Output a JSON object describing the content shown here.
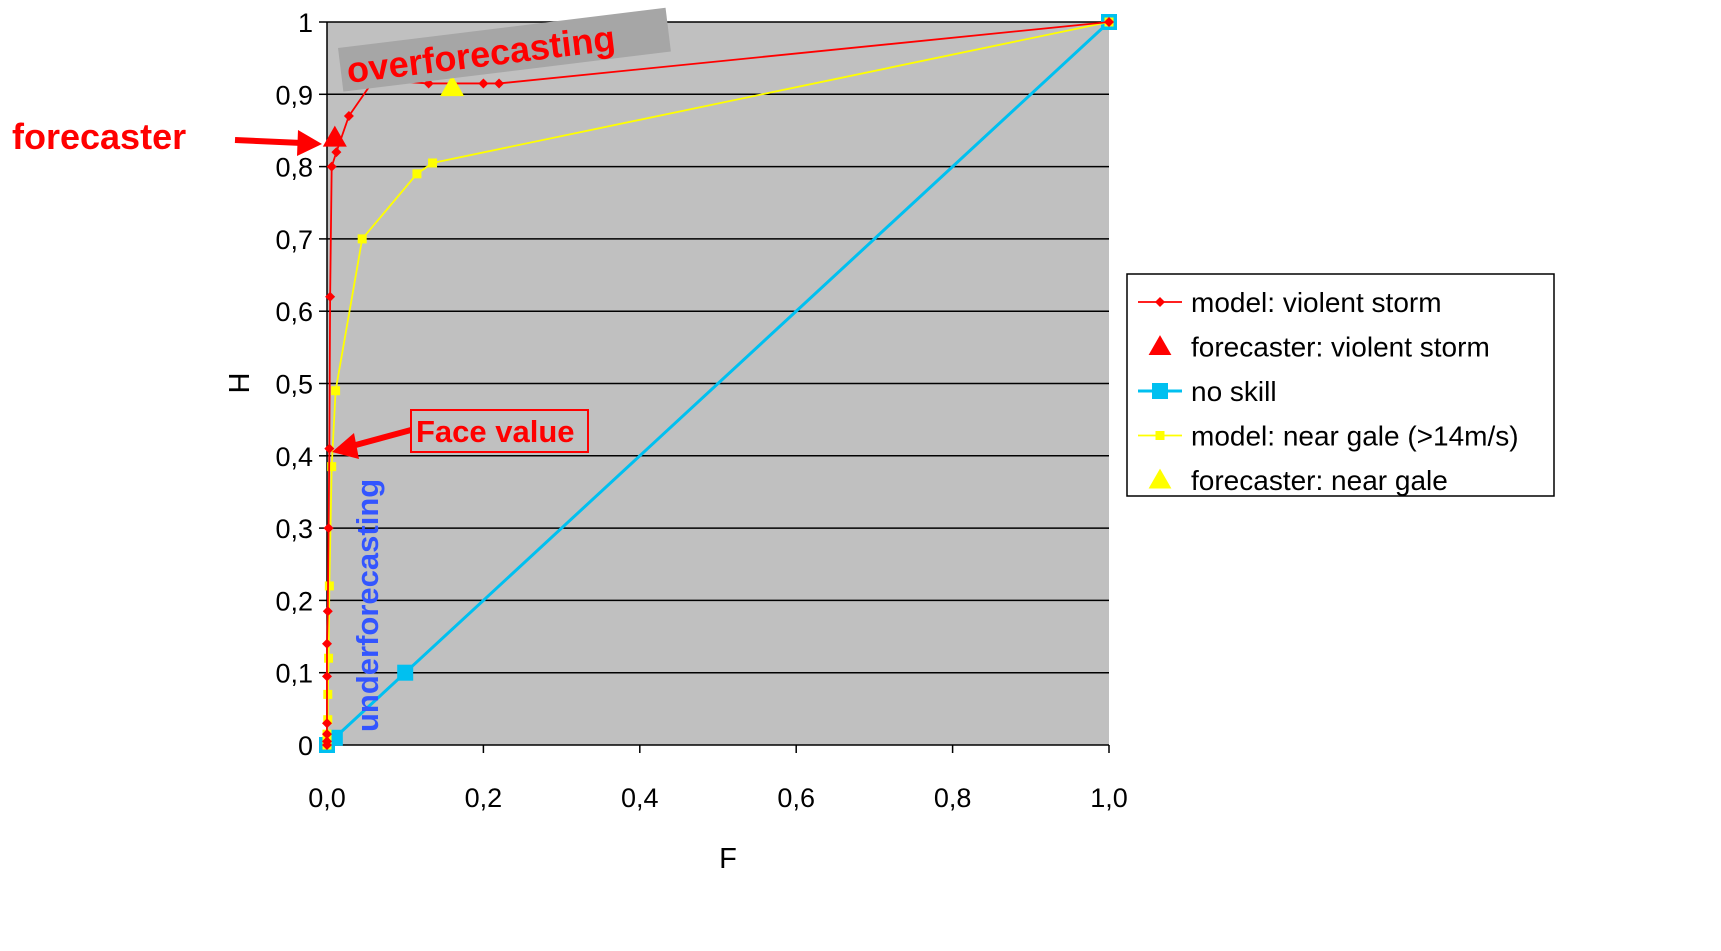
{
  "chart_data": {
    "type": "line",
    "xlabel": "F",
    "ylabel": "H",
    "xlim": [
      0,
      1
    ],
    "ylim": [
      0,
      1
    ],
    "x_ticks": [
      "0,0",
      "0,2",
      "0,4",
      "0,6",
      "0,8",
      "1,0"
    ],
    "y_ticks": [
      "0",
      "0,1",
      "0,2",
      "0,3",
      "0,4",
      "0,5",
      "0,6",
      "0,7",
      "0,8",
      "0,9",
      "1"
    ],
    "x_tick_values": [
      0,
      0.2,
      0.4,
      0.6,
      0.8,
      1.0
    ],
    "y_tick_values": [
      0,
      0.1,
      0.2,
      0.3,
      0.4,
      0.5,
      0.6,
      0.7,
      0.8,
      0.9,
      1.0
    ],
    "grid": "horizontal",
    "plot_background": "#c0c0c0",
    "legend_position": "right",
    "series": [
      {
        "name": "model: violent storm",
        "color": "#ff0000",
        "marker": "diamond",
        "line": true,
        "points": [
          [
            0,
            0
          ],
          [
            0,
            0.005
          ],
          [
            0,
            0.015
          ],
          [
            0,
            0.03
          ],
          [
            0,
            0.095
          ],
          [
            0,
            0.14
          ],
          [
            0.001,
            0.185
          ],
          [
            0.002,
            0.3
          ],
          [
            0.003,
            0.41
          ],
          [
            0.004,
            0.62
          ],
          [
            0.006,
            0.8
          ],
          [
            0.012,
            0.82
          ],
          [
            0.028,
            0.87
          ],
          [
            0.06,
            0.92
          ],
          [
            0.13,
            0.915
          ],
          [
            0.2,
            0.915
          ],
          [
            0.22,
            0.915
          ],
          [
            1.0,
            1.0
          ]
        ]
      },
      {
        "name": "forecaster: violent storm",
        "color": "#ff0000",
        "marker": "triangle",
        "line": false,
        "points": [
          [
            0.01,
            0.84
          ]
        ]
      },
      {
        "name": "no skill",
        "color": "#00c0f0",
        "marker": "square",
        "line": true,
        "points": [
          [
            0,
            0
          ],
          [
            0.01,
            0.01
          ],
          [
            0.1,
            0.1
          ],
          [
            1.0,
            1.0
          ]
        ]
      },
      {
        "name": "model: near gale (>14m/s)",
        "color": "#ffff00",
        "marker": "square-small",
        "line": true,
        "points": [
          [
            0,
            0
          ],
          [
            0,
            0.005
          ],
          [
            0,
            0.015
          ],
          [
            0.001,
            0.035
          ],
          [
            0.001,
            0.07
          ],
          [
            0.002,
            0.12
          ],
          [
            0.003,
            0.22
          ],
          [
            0.006,
            0.385
          ],
          [
            0.011,
            0.49
          ],
          [
            0.045,
            0.7
          ],
          [
            0.115,
            0.79
          ],
          [
            0.135,
            0.805
          ],
          [
            1.0,
            1.0
          ]
        ]
      },
      {
        "name": "forecaster: near gale",
        "color": "#ffff00",
        "marker": "triangle",
        "line": false,
        "points": [
          [
            0.16,
            0.91
          ]
        ]
      }
    ],
    "annotations": {
      "overforecasting": "overforecasting",
      "underforecasting": "underforecasting",
      "forecaster": "forecaster",
      "face_value": "Face value"
    }
  }
}
